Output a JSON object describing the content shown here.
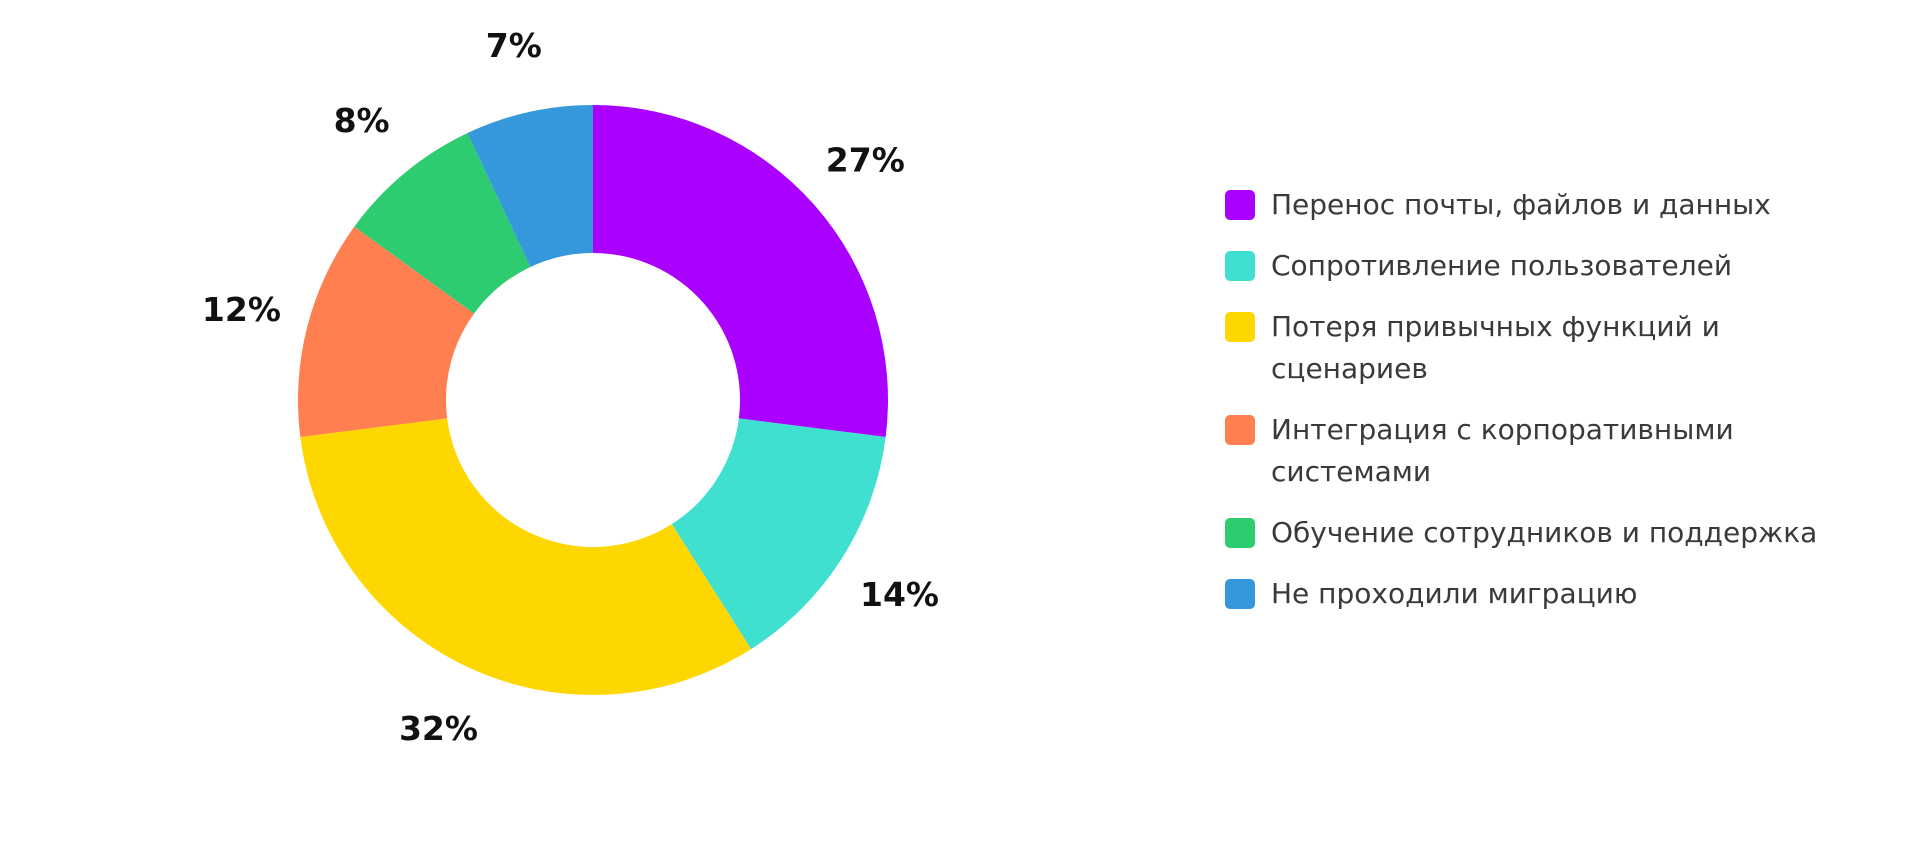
{
  "chart_data": {
    "type": "pie",
    "variant": "donut",
    "title": "",
    "categories": [
      "Перенос почты, файлов и данных",
      "Сопротивление пользователей",
      "Потеря привычных функций и сценариев",
      "Интеграция с корпоративными системами",
      "Обучение сотрудников и поддержка",
      "Не проходили миграцию"
    ],
    "values": [
      27,
      14,
      32,
      12,
      8,
      7
    ],
    "value_labels": [
      "27%",
      "14%",
      "32%",
      "12%",
      "8%",
      "7%"
    ],
    "colors": [
      "#AA00FF",
      "#40E0D0",
      "#FFD700",
      "#FF7F50",
      "#2ECC71",
      "#3498DB"
    ],
    "legend_position": "right",
    "start_angle": "top",
    "direction": "clockwise"
  }
}
